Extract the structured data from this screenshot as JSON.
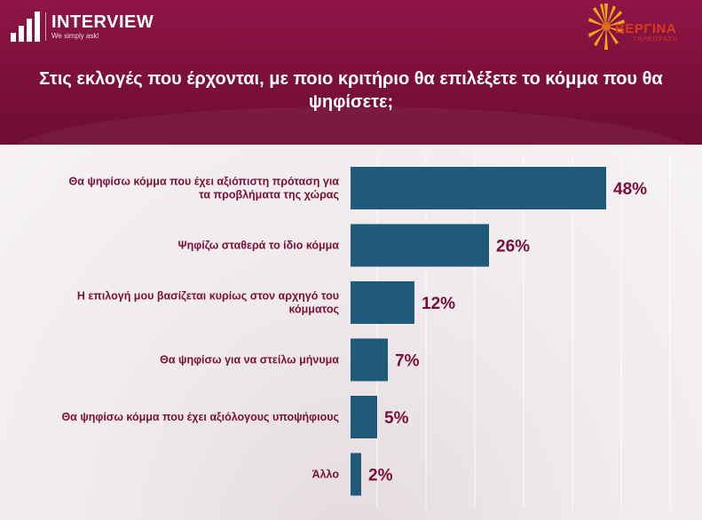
{
  "header": {
    "logo_name": "INTERVIEW",
    "logo_tagline": "We simply ask!",
    "partner_name": "ΒΕΡΓΙΝΑ",
    "partner_sub": "ΤΗΛΕΟΡΑΣΗ"
  },
  "colors": {
    "header_bg": "#7a0f3a",
    "bar": "#1f5a7a",
    "label": "#7a0f3a"
  },
  "chart_data": {
    "type": "bar",
    "orientation": "horizontal",
    "title": "Στις εκλογές που έρχονται, με ποιο κριτήριο θα επιλέξετε το κόμμα που θα ψηφίσετε;",
    "categories": [
      "Θα ψηφίσω κόμμα που έχει αξιόπιστη πρόταση για τα προβλήματα της χώρας",
      "Ψηφίζω σταθερά το ίδιο κόμμα",
      "Η επιλογή μου βασίζεται κυρίως στον αρχηγό του κόμματος",
      "Θα ψηφίσω για να στείλω μήνυμα",
      "Θα ψηφίσω κόμμα που έχει αξιόλογους υποψήφιους",
      "Άλλο"
    ],
    "category_lines": [
      [
        "Θα ψηφίσω κόμμα που έχει αξιόπιστη πρόταση για",
        "τα προβλήματα της χώρας"
      ],
      [
        "Ψηφίζω σταθερά το ίδιο κόμμα"
      ],
      [
        "Η επιλογή μου βασίζεται κυρίως στον αρχηγό του",
        "κόμματος"
      ],
      [
        "Θα ψηφίσω για να στείλω μήνυμα"
      ],
      [
        "Θα ψηφίσω κόμμα που έχει αξιόλογους υποψήφιους"
      ],
      [
        "Άλλο"
      ]
    ],
    "values": [
      48,
      26,
      12,
      7,
      5,
      2
    ],
    "value_labels": [
      "48%",
      "26%",
      "12%",
      "7%",
      "5%",
      "2%"
    ],
    "xlim": [
      0,
      60
    ],
    "grid": true,
    "legend": "none"
  }
}
